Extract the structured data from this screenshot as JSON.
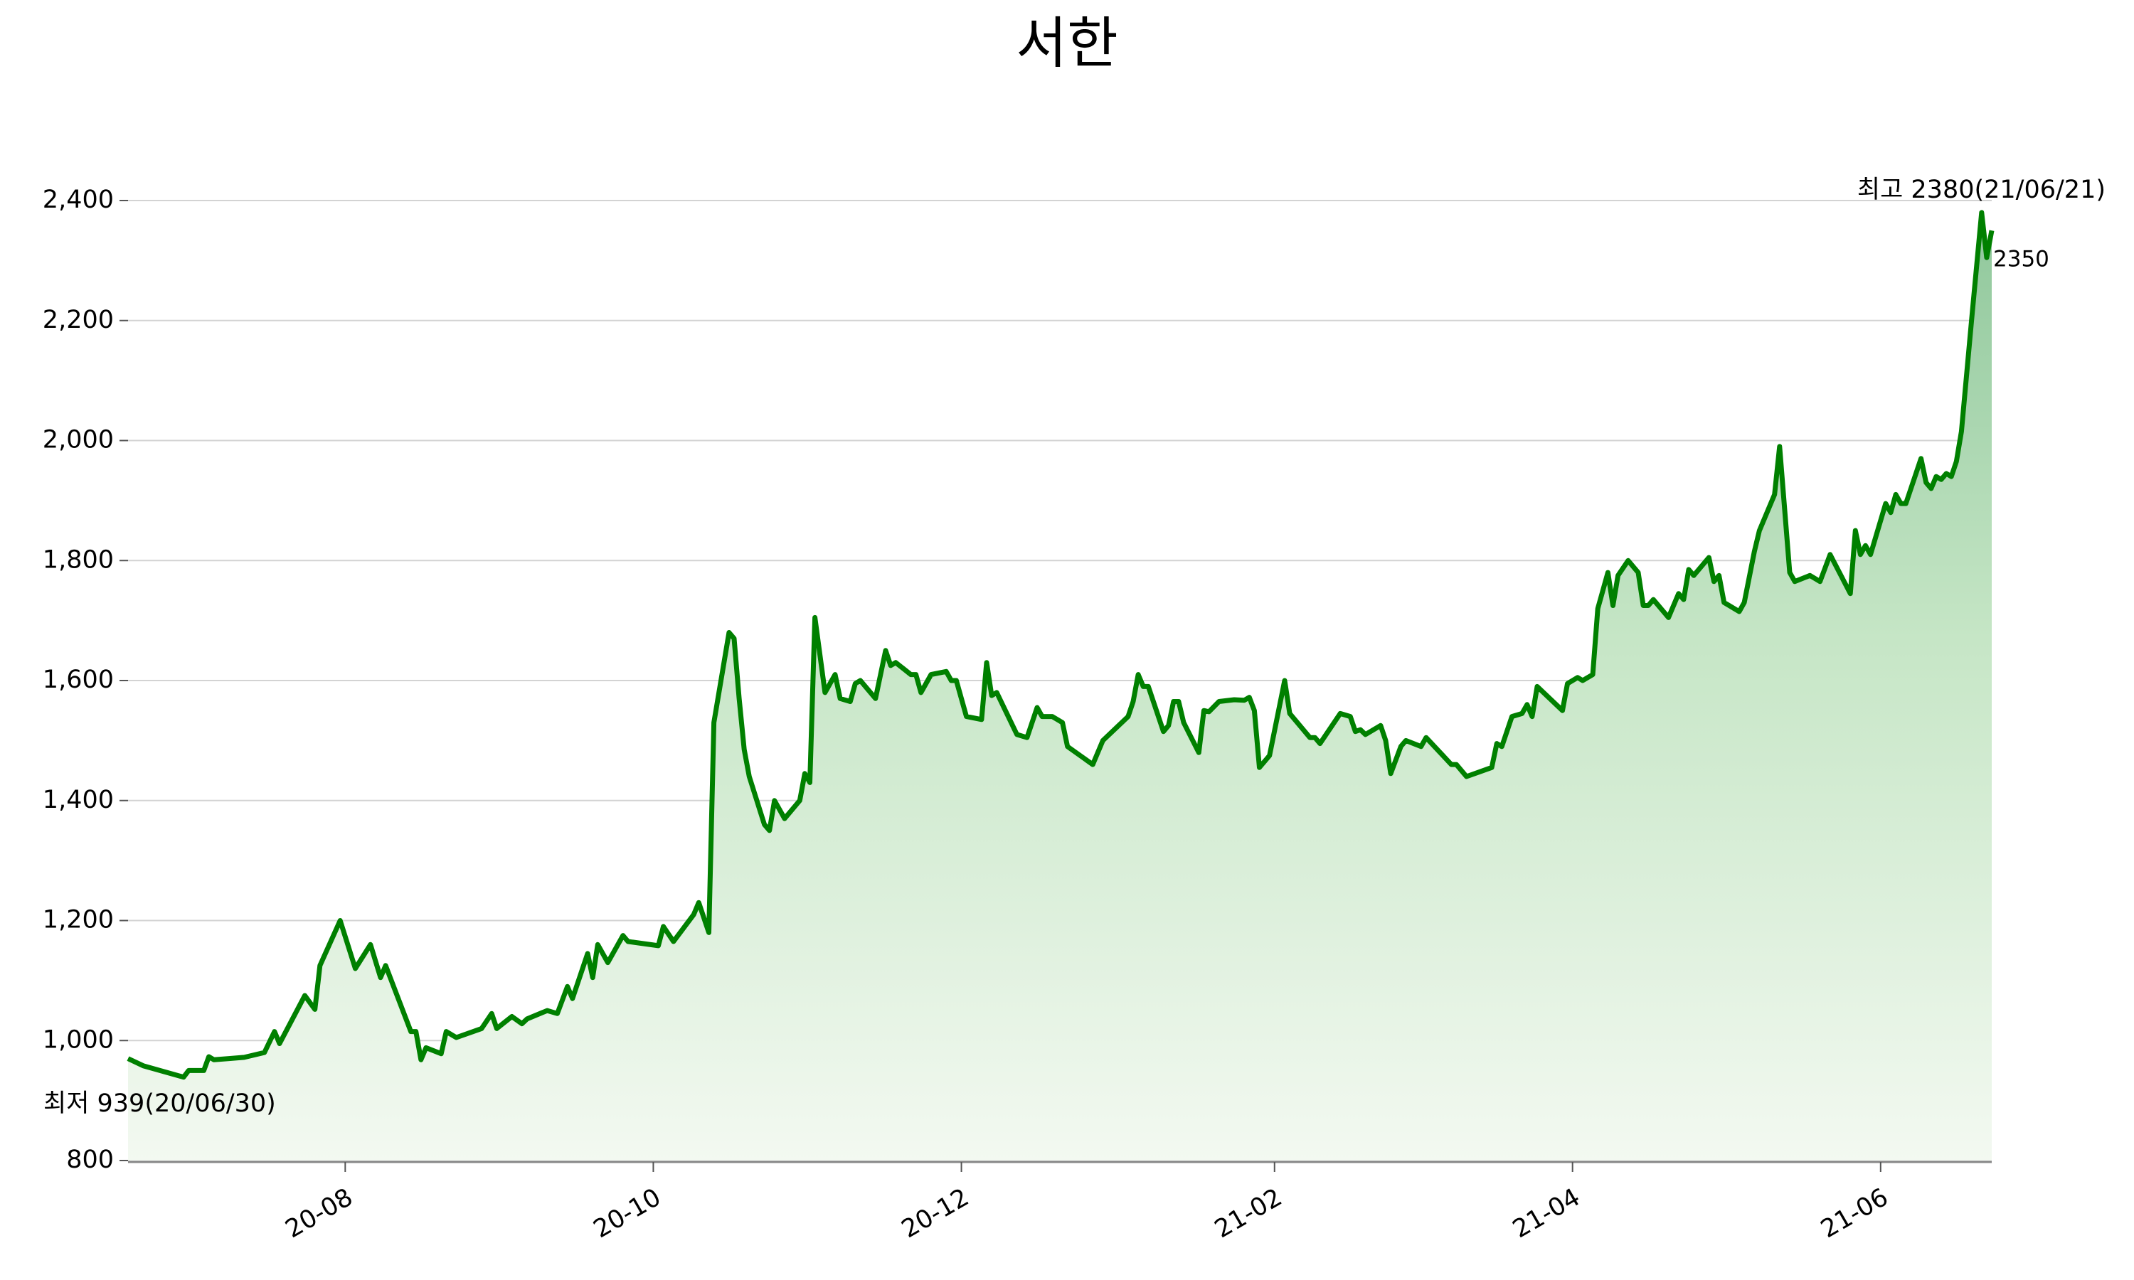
{
  "chart_data": {
    "type": "line",
    "title": "서한",
    "color": "#008000",
    "area": true,
    "grid": true,
    "xlim": [
      "2020-06-19",
      "2021-06-23"
    ],
    "ylim": [
      800,
      2400
    ],
    "xticks": [
      {
        "value": "2020-08-01",
        "label": "20-08"
      },
      {
        "value": "2020-10-01",
        "label": "20-10"
      },
      {
        "value": "2020-12-01",
        "label": "20-12"
      },
      {
        "value": "2021-02-01",
        "label": "21-02"
      },
      {
        "value": "2021-04-01",
        "label": "21-04"
      },
      {
        "value": "2021-06-01",
        "label": "21-06"
      }
    ],
    "yticks": [
      800,
      {
        "value": 1000,
        "label": "1,000"
      },
      {
        "value": 1200,
        "label": "1,200"
      },
      {
        "value": 1400,
        "label": "1,400"
      },
      {
        "value": 1600,
        "label": "1,600"
      },
      {
        "value": 1800,
        "label": "1,800"
      },
      {
        "value": 2000,
        "label": "2,000"
      },
      {
        "value": 2200,
        "label": "2,200"
      },
      {
        "value": 2400,
        "label": "2,400"
      }
    ],
    "annotations": [
      {
        "text": "최고 2380(21/06/21)",
        "color": "#ff0000"
      },
      {
        "text": "최저 939(20/06/30)",
        "color": "#0000ff"
      },
      {
        "text": "2350",
        "color": "#000000"
      }
    ],
    "x": [
      "2020-06-19",
      "2020-06-22",
      "2020-06-30",
      "2020-07-01",
      "2020-07-04",
      "2020-07-05",
      "2020-07-06",
      "2020-07-09",
      "2020-07-12",
      "2020-07-16",
      "2020-07-18",
      "2020-07-19",
      "2020-07-24",
      "2020-07-26",
      "2020-07-27",
      "2020-07-31",
      "2020-08-03",
      "2020-08-06",
      "2020-08-08",
      "2020-08-09",
      "2020-08-14",
      "2020-08-15",
      "2020-08-16",
      "2020-08-17",
      "2020-08-20",
      "2020-08-21",
      "2020-08-23",
      "2020-08-28",
      "2020-08-30",
      "2020-08-31",
      "2020-09-03",
      "2020-09-05",
      "2020-09-06",
      "2020-09-10",
      "2020-09-12",
      "2020-09-14",
      "2020-09-15",
      "2020-09-18",
      "2020-09-19",
      "2020-09-20",
      "2020-09-22",
      "2020-09-25",
      "2020-09-26",
      "2020-10-02",
      "2020-10-03",
      "2020-10-05",
      "2020-10-09",
      "2020-10-10",
      "2020-10-12",
      "2020-10-13",
      "2020-10-16",
      "2020-10-17",
      "2020-10-18",
      "2020-10-19",
      "2020-10-20",
      "2020-10-23",
      "2020-10-24",
      "2020-10-25",
      "2020-10-27",
      "2020-10-30",
      "2020-10-31",
      "2020-11-01",
      "2020-11-02",
      "2020-11-04",
      "2020-11-06",
      "2020-11-07",
      "2020-11-09",
      "2020-11-10",
      "2020-11-11",
      "2020-11-14",
      "2020-11-16",
      "2020-11-17",
      "2020-11-18",
      "2020-11-21",
      "2020-11-22",
      "2020-11-23",
      "2020-11-25",
      "2020-11-28",
      "2020-11-29",
      "2020-11-30",
      "2020-12-02",
      "2020-12-05",
      "2020-12-06",
      "2020-12-07",
      "2020-12-08",
      "2020-12-12",
      "2020-12-14",
      "2020-12-16",
      "2020-12-17",
      "2020-12-19",
      "2020-12-21",
      "2020-12-22",
      "2020-12-27",
      "2020-12-29",
      "2021-01-03",
      "2021-01-04",
      "2021-01-05",
      "2021-01-06",
      "2021-01-07",
      "2021-01-10",
      "2021-01-11",
      "2021-01-12",
      "2021-01-13",
      "2021-01-14",
      "2021-01-17",
      "2021-01-18",
      "2021-01-19",
      "2021-01-21",
      "2021-01-24",
      "2021-01-26",
      "2021-01-27",
      "2021-01-28",
      "2021-01-29",
      "2021-01-31",
      "2021-02-03",
      "2021-02-04",
      "2021-02-08",
      "2021-02-09",
      "2021-02-10",
      "2021-02-14",
      "2021-02-16",
      "2021-02-17",
      "2021-02-18",
      "2021-02-19",
      "2021-02-22",
      "2021-02-23",
      "2021-02-24",
      "2021-02-26",
      "2021-02-27",
      "2021-03-02",
      "2021-03-03",
      "2021-03-08",
      "2021-03-09",
      "2021-03-11",
      "2021-03-16",
      "2021-03-17",
      "2021-03-18",
      "2021-03-20",
      "2021-03-22",
      "2021-03-23",
      "2021-03-24",
      "2021-03-25",
      "2021-03-30",
      "2021-03-31",
      "2021-04-02",
      "2021-04-03",
      "2021-04-05",
      "2021-04-06",
      "2021-04-08",
      "2021-04-09",
      "2021-04-10",
      "2021-04-12",
      "2021-04-14",
      "2021-04-15",
      "2021-04-16",
      "2021-04-17",
      "2021-04-20",
      "2021-04-22",
      "2021-04-23",
      "2021-04-24",
      "2021-04-25",
      "2021-04-28",
      "2021-04-29",
      "2021-04-30",
      "2021-05-01",
      "2021-05-04",
      "2021-05-05",
      "2021-05-07",
      "2021-05-08",
      "2021-05-11",
      "2021-05-12",
      "2021-05-14",
      "2021-05-15",
      "2021-05-18",
      "2021-05-20",
      "2021-05-22",
      "2021-05-26",
      "2021-05-27",
      "2021-05-28",
      "2021-05-29",
      "2021-05-30",
      "2021-06-02",
      "2021-06-03",
      "2021-06-04",
      "2021-06-05",
      "2021-06-06",
      "2021-06-09",
      "2021-06-10",
      "2021-06-11",
      "2021-06-12",
      "2021-06-13",
      "2021-06-14",
      "2021-06-15",
      "2021-06-16",
      "2021-06-17",
      "2021-06-19",
      "2021-06-21",
      "2021-06-22",
      "2021-06-23"
    ],
    "values": [
      970,
      958,
      939,
      950,
      950,
      973,
      968,
      970,
      972,
      980,
      1015,
      995,
      1075,
      1052,
      1125,
      1200,
      1120,
      1160,
      1105,
      1125,
      1015,
      1015,
      968,
      988,
      978,
      1015,
      1005,
      1020,
      1045,
      1020,
      1040,
      1028,
      1036,
      1050,
      1045,
      1090,
      1070,
      1145,
      1105,
      1160,
      1130,
      1175,
      1165,
      1158,
      1190,
      1165,
      1210,
      1230,
      1180,
      1530,
      1680,
      1670,
      1570,
      1485,
      1440,
      1360,
      1350,
      1400,
      1370,
      1400,
      1445,
      1430,
      1705,
      1580,
      1610,
      1570,
      1565,
      1595,
      1600,
      1570,
      1650,
      1625,
      1630,
      1610,
      1610,
      1580,
      1610,
      1615,
      1600,
      1600,
      1540,
      1535,
      1630,
      1575,
      1580,
      1510,
      1505,
      1555,
      1540,
      1540,
      1530,
      1490,
      1460,
      1500,
      1540,
      1565,
      1610,
      1590,
      1590,
      1515,
      1525,
      1565,
      1565,
      1530,
      1480,
      1550,
      1548,
      1565,
      1568,
      1567,
      1572,
      1550,
      1455,
      1475,
      1600,
      1545,
      1505,
      1505,
      1495,
      1545,
      1540,
      1515,
      1518,
      1510,
      1525,
      1500,
      1445,
      1490,
      1500,
      1490,
      1505,
      1460,
      1460,
      1440,
      1455,
      1495,
      1490,
      1540,
      1545,
      1560,
      1540,
      1590,
      1550,
      1595,
      1605,
      1600,
      1610,
      1720,
      1780,
      1725,
      1775,
      1800,
      1780,
      1725,
      1725,
      1735,
      1705,
      1745,
      1735,
      1785,
      1775,
      1805,
      1765,
      1775,
      1730,
      1715,
      1730,
      1815,
      1850,
      1910,
      1990,
      1780,
      1765,
      1775,
      1765,
      1810,
      1745,
      1850,
      1810,
      1825,
      1810,
      1895,
      1880,
      1910,
      1895,
      1895,
      1970,
      1930,
      1920,
      1940,
      1935,
      1945,
      1940,
      1965,
      2015,
      2200,
      2380,
      2305,
      2350
    ]
  }
}
